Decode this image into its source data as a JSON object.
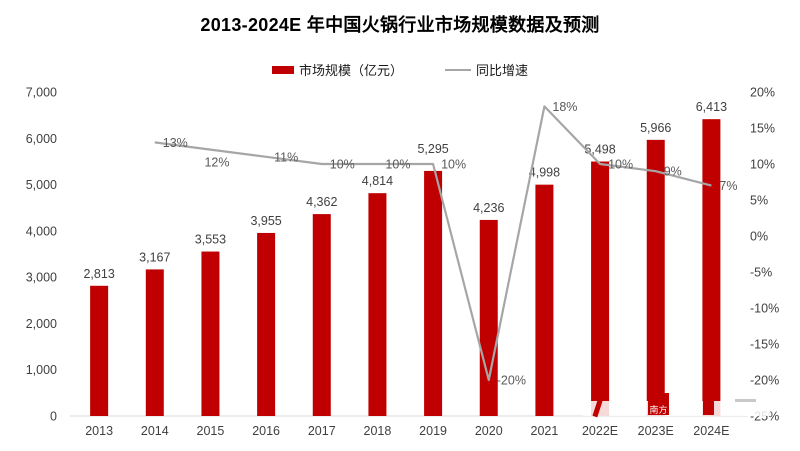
{
  "title": "2013-2024E 年中国火锅行业市场规模数据及预测",
  "legend": [
    {
      "label": "市场规模（亿元）",
      "type": "bar"
    },
    {
      "label": "同比增速",
      "type": "line"
    }
  ],
  "colors": {
    "bar": "#C00000",
    "line": "#A6A6A6",
    "axis_line": "#D9D9D9",
    "tick_text": "#404040",
    "value_label": "#404040",
    "pct_label": "#595959",
    "watermark_badge": "#C00000"
  },
  "watermark": {
    "badge_text": "南方"
  },
  "chart_data": {
    "type": "bar+line combo",
    "title": "2013-2024E 年中国火锅行业市场规模数据及预测",
    "categories": [
      "2013",
      "2014",
      "2015",
      "2016",
      "2017",
      "2018",
      "2019",
      "2020",
      "2021",
      "2022E",
      "2023E",
      "2024E"
    ],
    "series": [
      {
        "name": "市场规模（亿元）",
        "type": "bar",
        "axis": "left",
        "values": [
          2813,
          3167,
          3553,
          3955,
          4362,
          4814,
          5295,
          4236,
          4998,
          5498,
          5966,
          6413
        ],
        "labels": [
          "2,813",
          "3,167",
          "3,553",
          "3,955",
          "4,362",
          "4,814",
          "5,295",
          "4,236",
          "4,998",
          "5,498",
          "5,966",
          "6,413"
        ]
      },
      {
        "name": "同比增速",
        "type": "line",
        "axis": "right",
        "values": [
          null,
          13,
          12,
          11,
          10,
          10,
          10,
          -20,
          18,
          10,
          9,
          7
        ],
        "labels": [
          null,
          "13%",
          "12%",
          "11%",
          "10%",
          "10%",
          "10%",
          "-20%",
          "18%",
          "10%",
          "9%",
          "7%"
        ]
      }
    ],
    "left_axis": {
      "min": 0,
      "max": 7000,
      "tick_values": [
        0,
        1000,
        2000,
        3000,
        4000,
        5000,
        6000,
        7000
      ],
      "tick_labels": [
        "0",
        "1,000",
        "2,000",
        "3,000",
        "4,000",
        "5,000",
        "6,000",
        "7,000"
      ]
    },
    "right_axis": {
      "min": -25,
      "max": 20,
      "tick_values": [
        20,
        15,
        10,
        5,
        0,
        -5,
        -10,
        -15,
        -20,
        -25
      ],
      "tick_labels": [
        "20%",
        "15%",
        "10%",
        "5%",
        "0%",
        "-5%",
        "-10%",
        "-15%",
        "-20%",
        "-25%"
      ]
    },
    "grid": false,
    "legend_position": "top-center"
  }
}
